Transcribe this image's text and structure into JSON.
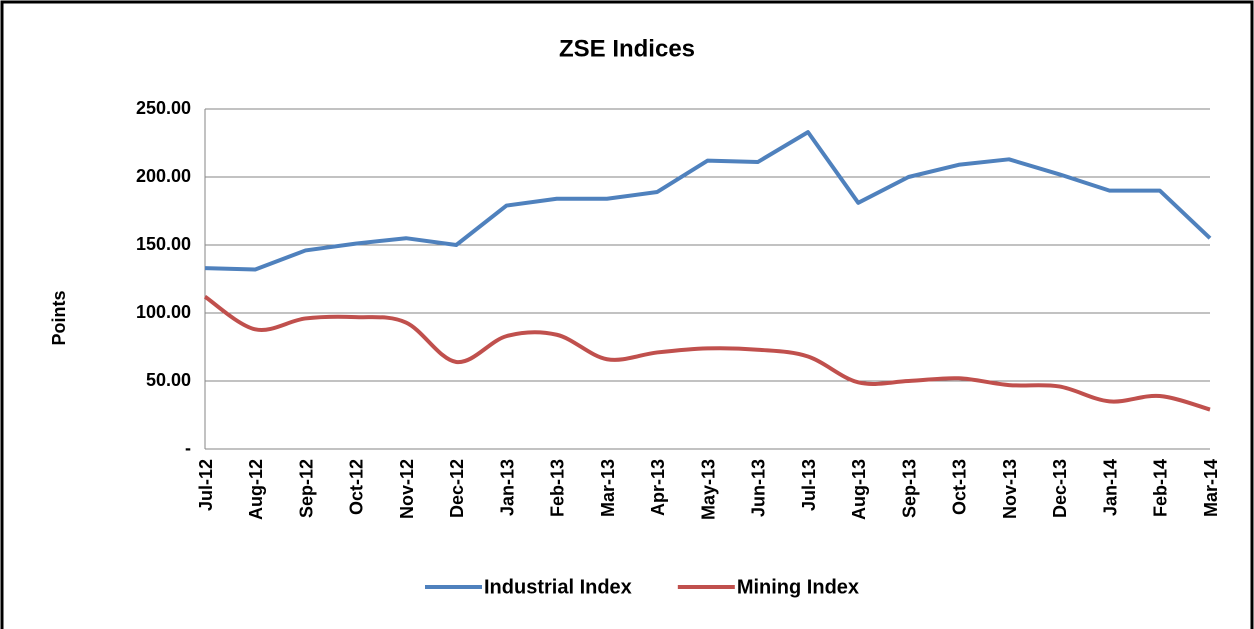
{
  "chart_data": {
    "type": "line",
    "title": "ZSE Indices",
    "y_label": "Points",
    "categories": [
      "Jul-12",
      "Aug-12",
      "Sep-12",
      "Oct-12",
      "Nov-12",
      "Dec-12",
      "Jan-13",
      "Feb-13",
      "Mar-13",
      "Apr-13",
      "May-13",
      "Jun-13",
      "Jul-13",
      "Aug-13",
      "Sep-13",
      "Oct-13",
      "Nov-13",
      "Dec-13",
      "Jan-14",
      "Feb-14",
      "Mar-14"
    ],
    "series": [
      {
        "name": "Industrial Index",
        "color": "#4f81bd",
        "smooth": false,
        "values": [
          133,
          132,
          146,
          151,
          155,
          150,
          179,
          184,
          184,
          189,
          212,
          211,
          233,
          181,
          200,
          209,
          213,
          202,
          190,
          190,
          155
        ]
      },
      {
        "name": "Mining Index",
        "color": "#c0504d",
        "smooth": true,
        "values": [
          112,
          88,
          96,
          97,
          93,
          64,
          83,
          84,
          66,
          71,
          74,
          73,
          68,
          49,
          50,
          52,
          47,
          46,
          35,
          39,
          29
        ]
      }
    ],
    "ylim": [
      0,
      250
    ],
    "yticks": [
      {
        "value": 0,
        "label": "-"
      },
      {
        "value": 50,
        "label": "50.00"
      },
      {
        "value": 100,
        "label": "100.00"
      },
      {
        "value": 150,
        "label": "150.00"
      },
      {
        "value": 200,
        "label": "200.00"
      },
      {
        "value": 250,
        "label": "250.00"
      }
    ],
    "grid": true,
    "legend": "bottom"
  }
}
